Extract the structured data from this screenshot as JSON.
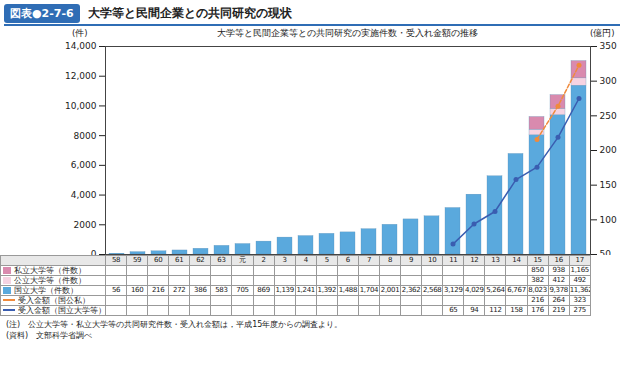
{
  "chart_data": {
    "type": "bar",
    "figure_label": "図表●2-7-6",
    "title": "大学等と民間企業との共同研究の現状",
    "subtitle": "大学等と民間企業等との共同研究の実施件数・受入れ金額の推移",
    "y_label": "(件)",
    "y2_label": "(億円)",
    "stacked": true,
    "categories": [
      "58",
      "59",
      "60",
      "61",
      "62",
      "63",
      "元",
      "2",
      "3",
      "4",
      "5",
      "6",
      "7",
      "8",
      "9",
      "10",
      "11",
      "12",
      "13",
      "14",
      "15",
      "16",
      "17"
    ],
    "series": [
      {
        "name": "国立大学（件数）",
        "type": "bar",
        "color": "#5aa9dd",
        "values": [
          56,
          160,
          216,
          272,
          386,
          583,
          705,
          869,
          1139,
          1241,
          1392,
          1488,
          1704,
          2001,
          2362,
          2568,
          3129,
          4029,
          5264,
          6767,
          8023,
          9378,
          11362
        ],
        "value_labels": [
          "56",
          "160",
          "216",
          "272",
          "386",
          "583",
          "705",
          "869",
          "1,139",
          "1,241",
          "1,392",
          "1,488",
          "1,704",
          "2,001",
          "2,362",
          "2,568",
          "3,129",
          "4,029",
          "5,264",
          "6,767",
          "8,023",
          "9,378",
          "11,362"
        ]
      },
      {
        "name": "公立大学等（件数）",
        "type": "bar",
        "color": "#f6d3e2",
        "values": [
          null,
          null,
          null,
          null,
          null,
          null,
          null,
          null,
          null,
          null,
          null,
          null,
          null,
          null,
          null,
          null,
          null,
          null,
          null,
          null,
          382,
          412,
          492
        ]
      },
      {
        "name": "私立大学等（件数）",
        "type": "bar",
        "color": "#d98aae",
        "values": [
          null,
          null,
          null,
          null,
          null,
          null,
          null,
          null,
          null,
          null,
          null,
          null,
          null,
          null,
          null,
          null,
          null,
          null,
          null,
          null,
          850,
          938,
          1165
        ],
        "value_labels": [
          null,
          null,
          null,
          null,
          null,
          null,
          null,
          null,
          null,
          null,
          null,
          null,
          null,
          null,
          null,
          null,
          null,
          null,
          null,
          null,
          "850",
          "938",
          "1,165"
        ]
      },
      {
        "name": "受入金額（国公私）",
        "type": "line",
        "axis": "y2",
        "color": "#f08a3c",
        "line_style": "dashed",
        "marker": "circle",
        "values": [
          null,
          null,
          null,
          null,
          null,
          null,
          null,
          null,
          null,
          null,
          null,
          null,
          null,
          null,
          null,
          null,
          null,
          null,
          null,
          null,
          216,
          264,
          323
        ]
      },
      {
        "name": "受入金額（国立大学等）",
        "type": "line",
        "axis": "y2",
        "color": "#3a5db0",
        "line_style": "solid",
        "marker": "circle",
        "values": [
          null,
          null,
          null,
          null,
          null,
          null,
          null,
          null,
          null,
          null,
          null,
          null,
          null,
          null,
          null,
          null,
          65,
          94,
          112,
          158,
          176,
          219,
          275
        ]
      }
    ],
    "ylim": [
      0,
      14000
    ],
    "yticks": [
      0,
      {
        "value": 2000,
        "label": "2000"
      },
      {
        "value": 4000,
        "label": "4,000"
      },
      {
        "value": 6000,
        "label": "6,000"
      },
      {
        "value": 8000,
        "label": "8000"
      },
      {
        "value": 10000,
        "label": "10,000"
      },
      {
        "value": 12000,
        "label": "12,000"
      },
      {
        "value": 14000,
        "label": "14,000"
      }
    ],
    "y2lim": [
      50,
      350
    ],
    "y2ticks": [
      50,
      100,
      150,
      200,
      250,
      300,
      350
    ],
    "grid": false,
    "notes": [
      "(注)　公立大学等・私立大学等の共同研究件数・受入れ金額は，平成15年度からの調査より。",
      "(資料)　文部科学省調べ"
    ]
  }
}
